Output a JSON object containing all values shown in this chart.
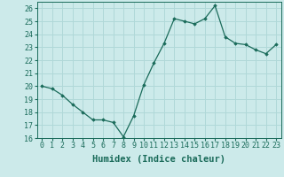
{
  "x": [
    0,
    1,
    2,
    3,
    4,
    5,
    6,
    7,
    8,
    9,
    10,
    11,
    12,
    13,
    14,
    15,
    16,
    17,
    18,
    19,
    20,
    21,
    22,
    23
  ],
  "y": [
    20.0,
    19.8,
    19.3,
    18.6,
    18.0,
    17.4,
    17.4,
    17.2,
    16.1,
    17.7,
    20.1,
    21.8,
    23.3,
    25.2,
    25.0,
    24.8,
    25.2,
    26.2,
    23.8,
    23.3,
    23.2,
    22.8,
    22.5,
    23.2
  ],
  "line_color": "#1a6b5a",
  "marker": "D",
  "marker_size": 1.8,
  "bg_color": "#cceaea",
  "grid_color": "#b0d8d8",
  "xlabel": "Humidex (Indice chaleur)",
  "xlim": [
    -0.5,
    23.5
  ],
  "ylim": [
    16,
    26.5
  ],
  "yticks": [
    16,
    17,
    18,
    19,
    20,
    21,
    22,
    23,
    24,
    25,
    26
  ],
  "xticks": [
    0,
    1,
    2,
    3,
    4,
    5,
    6,
    7,
    8,
    9,
    10,
    11,
    12,
    13,
    14,
    15,
    16,
    17,
    18,
    19,
    20,
    21,
    22,
    23
  ],
  "tick_label_size": 6,
  "xlabel_size": 7.5
}
